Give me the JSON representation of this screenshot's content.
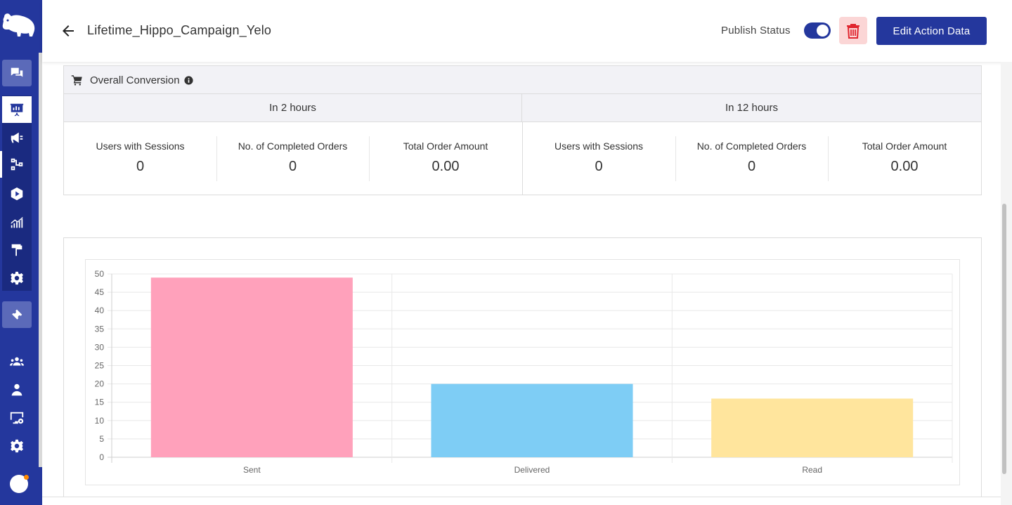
{
  "header": {
    "title": "Lifetime_Hippo_Campaign_Yelo",
    "publish_label": "Publish Status",
    "publish_enabled": true,
    "edit_label": "Edit Action Data"
  },
  "sidebar": {
    "items": [
      {
        "icon": "chat-icon"
      },
      {
        "icon": "presentation-chart-icon",
        "active": true
      },
      {
        "icon": "megaphone-icon"
      },
      {
        "icon": "flow-icon"
      },
      {
        "icon": "play-hexagon-icon"
      },
      {
        "icon": "analytics-icon"
      },
      {
        "icon": "paint-roller-icon"
      },
      {
        "icon": "gear-icon"
      },
      {
        "icon": "ticket-icon"
      },
      {
        "icon": "users-icon"
      },
      {
        "icon": "user-icon"
      },
      {
        "icon": "monitor-settings-icon"
      },
      {
        "icon": "gear-icon"
      }
    ]
  },
  "conversion": {
    "title": "Overall Conversion",
    "periods": [
      {
        "label": "In 2 hours",
        "metrics": [
          {
            "label": "Users with Sessions",
            "value": "0"
          },
          {
            "label": "No. of Completed Orders",
            "value": "0"
          },
          {
            "label": "Total Order Amount",
            "value": "0.00"
          }
        ]
      },
      {
        "label": "In 12 hours",
        "metrics": [
          {
            "label": "Users with Sessions",
            "value": "0"
          },
          {
            "label": "No. of Completed Orders",
            "value": "0"
          },
          {
            "label": "Total Order Amount",
            "value": "0.00"
          }
        ]
      }
    ]
  },
  "colors": {
    "brand": "#24379d",
    "sent": "#ffa1bb",
    "delivered": "#7ecdf5",
    "read": "#ffe59d"
  },
  "chart_data": {
    "type": "bar",
    "categories": [
      "Sent",
      "Delivered",
      "Read"
    ],
    "values": [
      49,
      20,
      16
    ],
    "ylim": [
      0,
      50
    ],
    "yticks": [
      0,
      5,
      10,
      15,
      20,
      25,
      30,
      35,
      40,
      45,
      50
    ],
    "grid": true,
    "legend": "none"
  }
}
